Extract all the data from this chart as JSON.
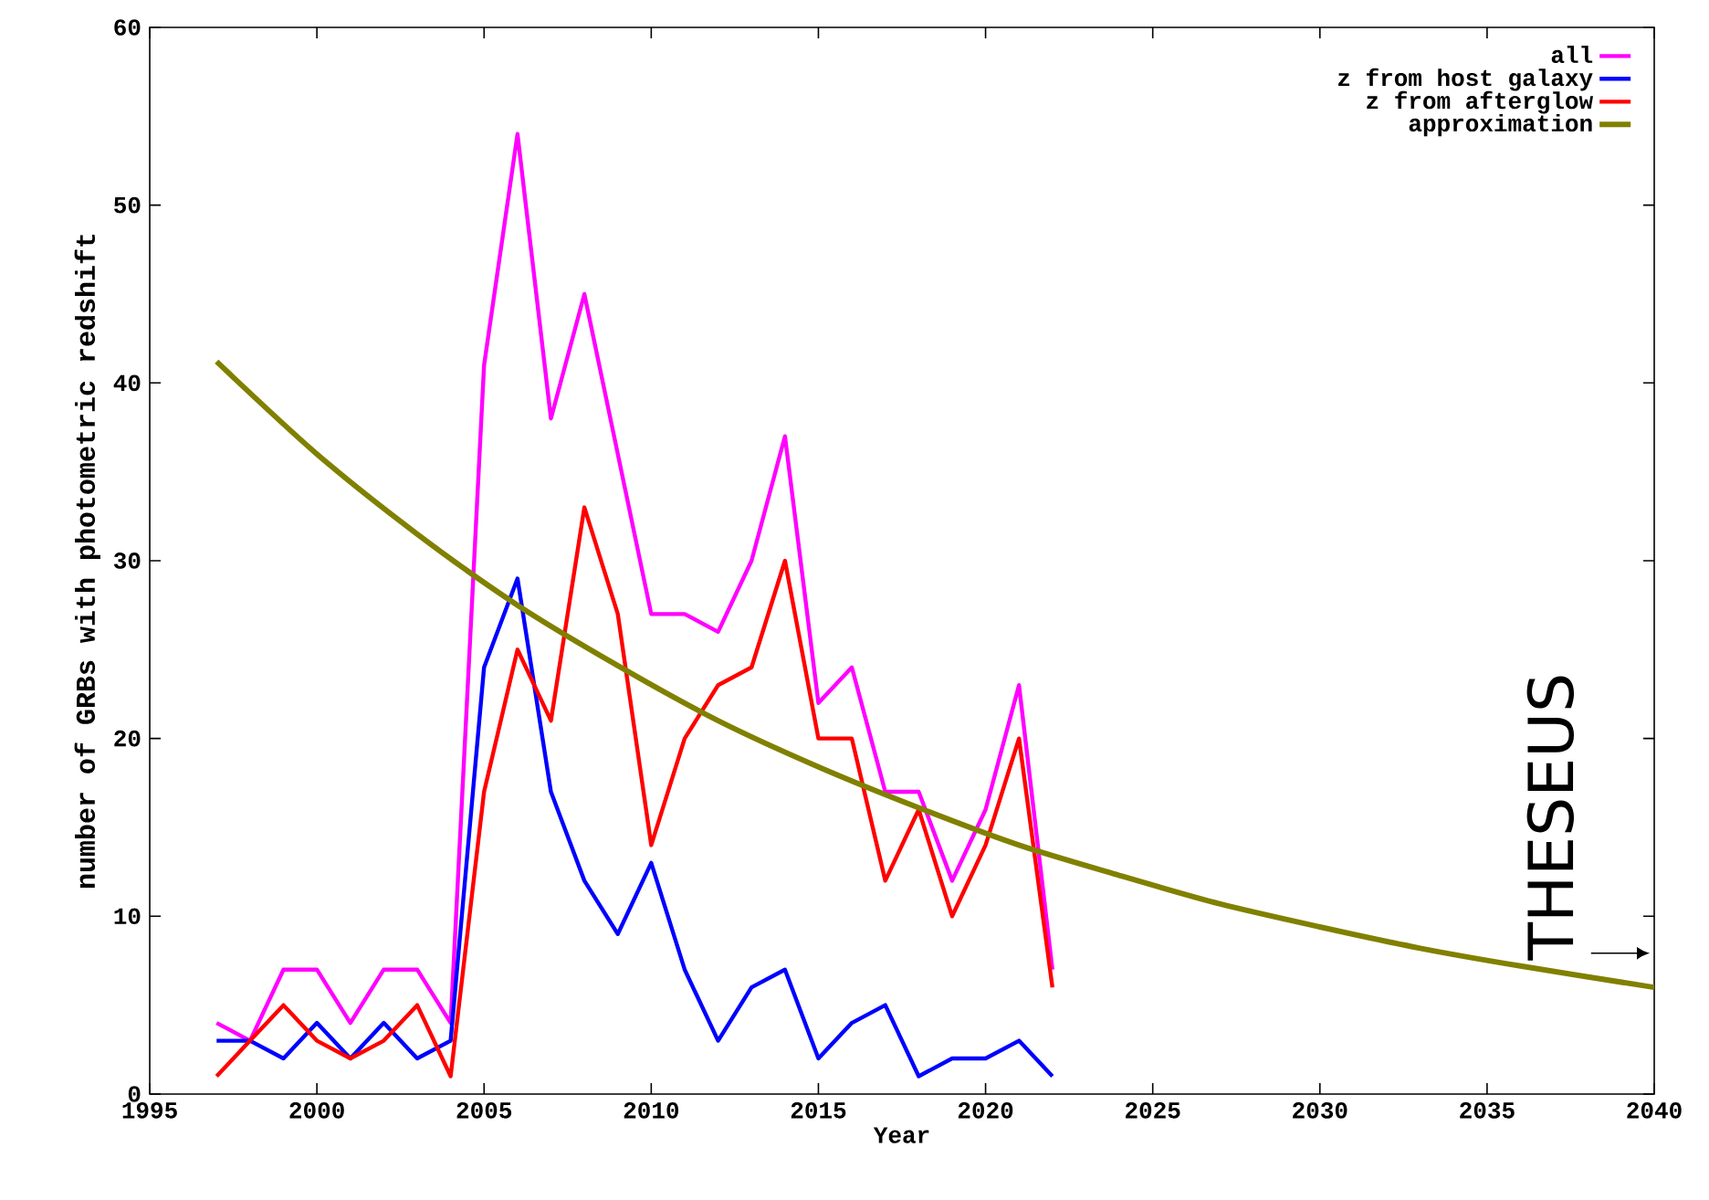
{
  "chart_data": {
    "type": "line",
    "xlabel": "Year",
    "ylabel": "number of GRBs with photometric redshift",
    "xlim": [
      1995,
      2040
    ],
    "xticks": [
      1995,
      2000,
      2005,
      2010,
      2015,
      2020,
      2025,
      2030,
      2035,
      2040
    ],
    "ylim": [
      0,
      60
    ],
    "yticks": [
      0,
      10,
      20,
      30,
      40,
      50,
      60
    ],
    "grid": false,
    "legend": "top right",
    "line_style": "solid",
    "marker": "none",
    "x": [
      1997,
      1998,
      1999,
      2000,
      2001,
      2002,
      2003,
      2004,
      2005,
      2006,
      2007,
      2008,
      2009,
      2010,
      2011,
      2012,
      2013,
      2014,
      2015,
      2016,
      2017,
      2018,
      2019,
      2020,
      2021,
      2022
    ],
    "series": [
      {
        "name": "all",
        "color": "#ff00ff",
        "values": [
          4,
          3,
          7,
          7,
          4,
          7,
          7,
          4,
          41,
          54,
          38,
          45,
          36,
          27,
          27,
          26,
          30,
          37,
          22,
          24,
          17,
          17,
          12,
          16,
          23,
          7
        ]
      },
      {
        "name": "z from host galaxy",
        "color": "#0000ff",
        "values": [
          3,
          3,
          2,
          4,
          2,
          4,
          2,
          3,
          24,
          29,
          17,
          12,
          9,
          13,
          7,
          3,
          6,
          7,
          2,
          4,
          5,
          1,
          2,
          2,
          3,
          1
        ]
      },
      {
        "name": "z from afterglow",
        "color": "#ff0000",
        "values": [
          1,
          3,
          5,
          3,
          2,
          3,
          5,
          1,
          17,
          25,
          21,
          33,
          27,
          14,
          20,
          23,
          24,
          30,
          20,
          20,
          12,
          16,
          10,
          14,
          20,
          6
        ]
      },
      {
        "name": "approximation",
        "color": "#808000",
        "x": [
          1997,
          2000,
          2003,
          2006,
          2009,
          2012,
          2015,
          2018,
          2021,
          2024,
          2027,
          2030,
          2033,
          2036,
          2040
        ],
        "values": [
          41.2,
          36.0,
          31.5,
          27.5,
          24.1,
          21.0,
          18.4,
          16.1,
          14.0,
          12.3,
          10.7,
          9.4,
          8.2,
          7.2,
          6.0
        ]
      }
    ],
    "annotations": [
      "THESEUS"
    ]
  }
}
